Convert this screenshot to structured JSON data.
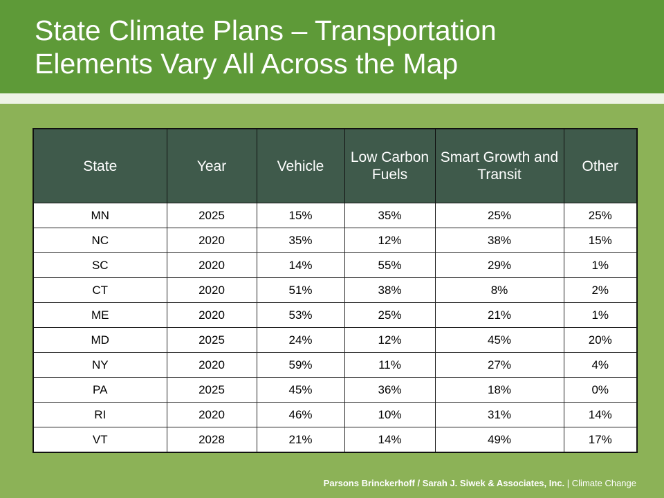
{
  "slide": {
    "title_line1": "State Climate Plans – Transportation",
    "title_line2": "Elements Vary All Across the Map"
  },
  "table": {
    "headers": [
      "State",
      "Year",
      "Vehicle",
      "Low Carbon Fuels",
      "Smart Growth and Transit",
      "Other"
    ],
    "rows": [
      [
        "MN",
        "2025",
        "15%",
        "35%",
        "25%",
        "25%"
      ],
      [
        "NC",
        "2020",
        "35%",
        "12%",
        "38%",
        "15%"
      ],
      [
        "SC",
        "2020",
        "14%",
        "55%",
        "29%",
        "1%"
      ],
      [
        "CT",
        "2020",
        "51%",
        "38%",
        "8%",
        "2%"
      ],
      [
        "ME",
        "2020",
        "53%",
        "25%",
        "21%",
        "1%"
      ],
      [
        "MD",
        "2025",
        "24%",
        "12%",
        "45%",
        "20%"
      ],
      [
        "NY",
        "2020",
        "59%",
        "11%",
        "27%",
        "4%"
      ],
      [
        "PA",
        "2025",
        "45%",
        "36%",
        "18%",
        "0%"
      ],
      [
        "RI",
        "2020",
        "46%",
        "10%",
        "31%",
        "14%"
      ],
      [
        "VT",
        "2028",
        "21%",
        "14%",
        "49%",
        "17%"
      ]
    ]
  },
  "footer": {
    "authors": "Parsons Brinckerhoff / Sarah  J. Siwek & Associates, Inc.",
    "separator": " | ",
    "topic": "Climate Change"
  }
}
